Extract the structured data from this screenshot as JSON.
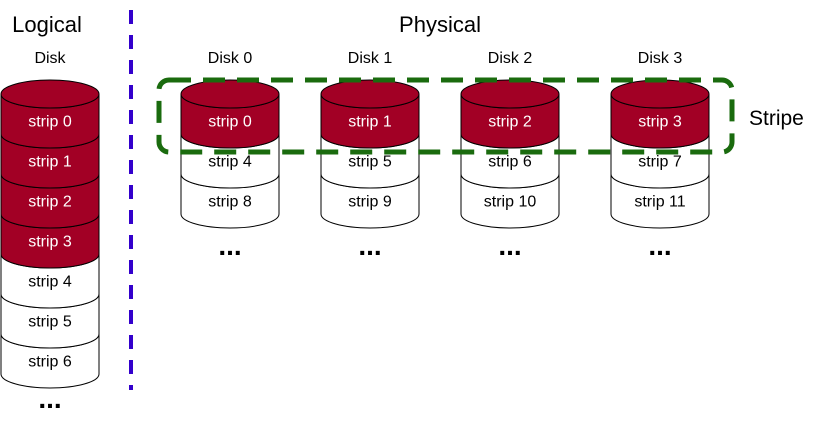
{
  "logical": {
    "title": "Logical",
    "subtitle": "Disk",
    "strips": [
      {
        "label": "strip 0",
        "highlighted": true
      },
      {
        "label": "strip 1",
        "highlighted": true
      },
      {
        "label": "strip 2",
        "highlighted": true
      },
      {
        "label": "strip 3",
        "highlighted": true
      },
      {
        "label": "strip 4",
        "highlighted": false
      },
      {
        "label": "strip 5",
        "highlighted": false
      },
      {
        "label": "strip 6",
        "highlighted": false
      }
    ],
    "ellipsis": "..."
  },
  "physical": {
    "title": "Physical",
    "disks": [
      {
        "name": "Disk 0",
        "strips": [
          {
            "label": "strip 0",
            "highlighted": true
          },
          {
            "label": "strip 4",
            "highlighted": false
          },
          {
            "label": "strip 8",
            "highlighted": false
          }
        ],
        "ellipsis": "..."
      },
      {
        "name": "Disk 1",
        "strips": [
          {
            "label": "strip 1",
            "highlighted": true
          },
          {
            "label": "strip 5",
            "highlighted": false
          },
          {
            "label": "strip 9",
            "highlighted": false
          }
        ],
        "ellipsis": "..."
      },
      {
        "name": "Disk 2",
        "strips": [
          {
            "label": "strip 2",
            "highlighted": true
          },
          {
            "label": "strip 6",
            "highlighted": false
          },
          {
            "label": "strip 10",
            "highlighted": false
          }
        ],
        "ellipsis": "..."
      },
      {
        "name": "Disk 3",
        "strips": [
          {
            "label": "strip 3",
            "highlighted": true
          },
          {
            "label": "strip 7",
            "highlighted": false
          },
          {
            "label": "strip 11",
            "highlighted": false
          }
        ],
        "ellipsis": "..."
      }
    ]
  },
  "stripe_label": "Stripe",
  "colors": {
    "highlight_fill": "#a20025",
    "highlight_text": "#ffffff",
    "plain_fill": "#ffffff",
    "plain_text": "#000000",
    "stroke": "#000000",
    "divider": "#3300cc",
    "stripe": "#1a6b0e"
  }
}
